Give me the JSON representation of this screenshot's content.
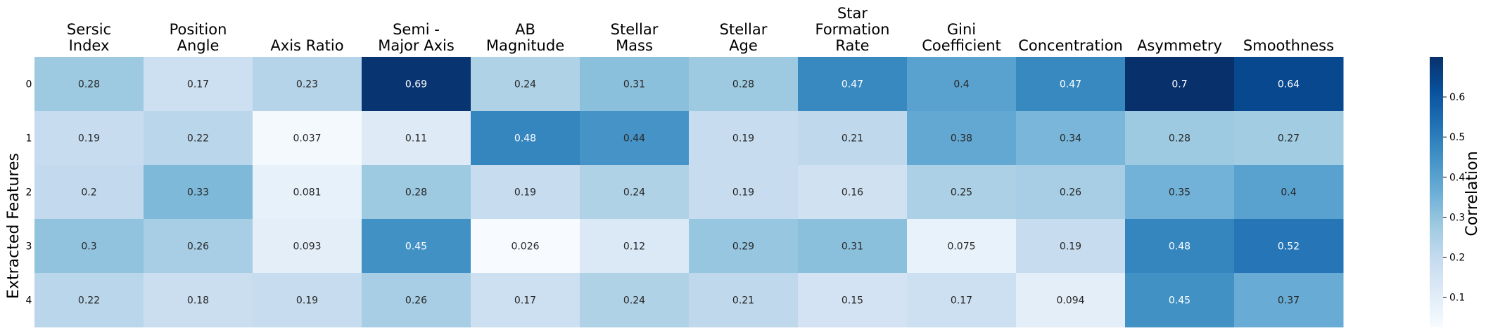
{
  "chart_data": {
    "type": "heatmap",
    "columns": [
      [
        "Sersic",
        "Index"
      ],
      [
        "Position",
        "Angle"
      ],
      [
        "Axis Ratio"
      ],
      [
        "Semi -",
        "Major Axis"
      ],
      [
        "AB",
        "Magnitude"
      ],
      [
        "Stellar",
        "Mass"
      ],
      [
        "Stellar",
        "Age"
      ],
      [
        "Star",
        "Formation",
        "Rate"
      ],
      [
        "Gini",
        "Coefficient"
      ],
      [
        "Concentration"
      ],
      [
        "Asymmetry"
      ],
      [
        "Smoothness"
      ]
    ],
    "rows": [
      "0",
      "1",
      "2",
      "3",
      "4"
    ],
    "values": [
      [
        0.28,
        0.17,
        0.23,
        0.69,
        0.24,
        0.31,
        0.28,
        0.47,
        0.4,
        0.47,
        0.7,
        0.64
      ],
      [
        0.19,
        0.22,
        0.037,
        0.11,
        0.48,
        0.44,
        0.19,
        0.21,
        0.38,
        0.34,
        0.28,
        0.27
      ],
      [
        0.2,
        0.33,
        0.081,
        0.28,
        0.19,
        0.24,
        0.19,
        0.16,
        0.25,
        0.26,
        0.35,
        0.4
      ],
      [
        0.3,
        0.26,
        0.093,
        0.45,
        0.026,
        0.12,
        0.29,
        0.31,
        0.075,
        0.19,
        0.48,
        0.52
      ],
      [
        0.22,
        0.18,
        0.19,
        0.26,
        0.17,
        0.24,
        0.21,
        0.15,
        0.17,
        0.094,
        0.45,
        0.37
      ]
    ],
    "ylabel": "Extracted Features",
    "colorbar_label": "Correlation",
    "colorbar_ticks": [
      0.1,
      0.2,
      0.3,
      0.4,
      0.5,
      0.6
    ],
    "vmin": 0.026,
    "vmax": 0.7,
    "colormap": "Blues",
    "colormap_stops": [
      "#f7fbff",
      "#deebf7",
      "#c6dbef",
      "#9ecae1",
      "#6baed6",
      "#4292c6",
      "#2171b5",
      "#08519c",
      "#08306b"
    ]
  }
}
